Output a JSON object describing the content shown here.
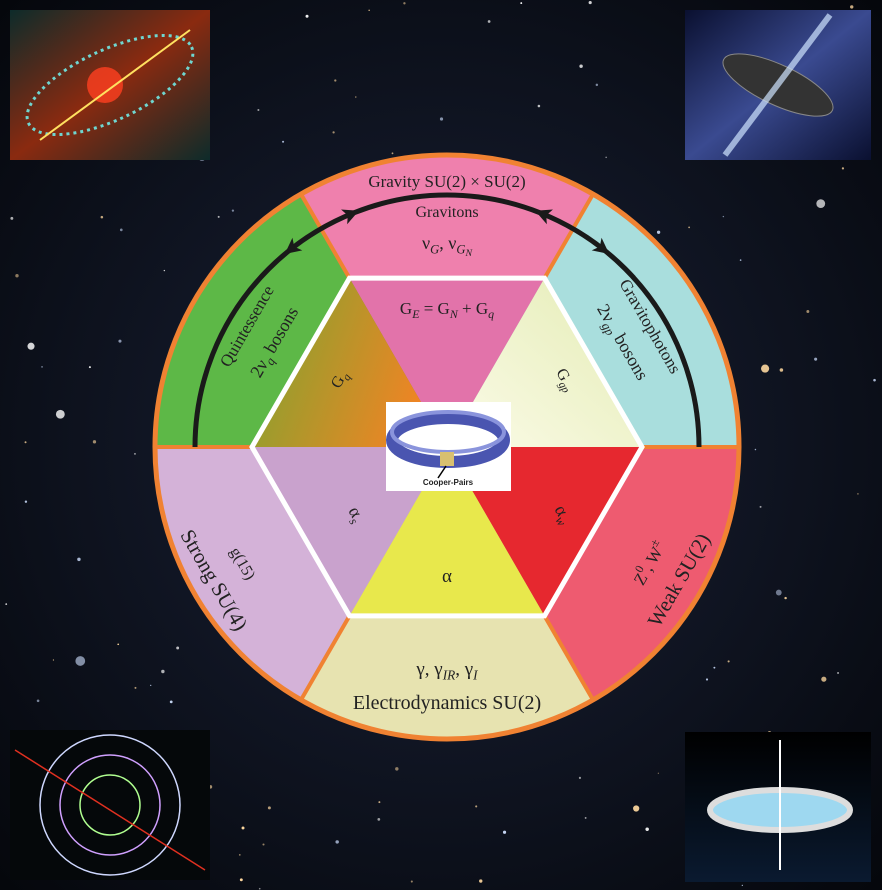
{
  "outer_sectors": {
    "top": [
      [
        {
          "t": "Gravity SU(2) × SU(2)"
        }
      ],
      [
        {
          "t": "Gravitons"
        }
      ],
      [
        {
          "t": "ν"
        },
        {
          "s": "G"
        },
        {
          "t": ", ν"
        },
        {
          "s": "G"
        },
        {
          "s2": "N"
        }
      ]
    ],
    "upper_left": [
      [
        {
          "t": "Quintessence"
        }
      ],
      [
        {
          "t": "2ν"
        },
        {
          "s": "q"
        },
        {
          "t": " bosons"
        }
      ]
    ],
    "upper_right": [
      [
        {
          "t": "Gravitophotons"
        }
      ],
      [
        {
          "t": "2ν"
        },
        {
          "s": "gp"
        },
        {
          "t": " bosons"
        }
      ]
    ],
    "lower_left": [
      [
        {
          "t": "g(15)"
        }
      ],
      [
        {
          "t": "Strong SU(4)"
        }
      ]
    ],
    "lower_right": [
      [
        {
          "t": "Z"
        },
        {
          "u": "0"
        },
        {
          "t": ", W"
        },
        {
          "u": "±"
        }
      ],
      [
        {
          "t": "Weak SU(2)"
        }
      ]
    ],
    "bottom": [
      [
        {
          "t": "γ, γ"
        },
        {
          "s": "IR"
        },
        {
          "t": ", γ"
        },
        {
          "s": "I"
        }
      ],
      [
        {
          "t": "Electrodynamics SU(2)"
        }
      ]
    ]
  },
  "inner_triangles": {
    "top": [
      {
        "t": "G"
      },
      {
        "s": "E"
      },
      {
        "t": " = G"
      },
      {
        "s": "N"
      },
      {
        "t": " + G"
      },
      {
        "s": "q"
      }
    ],
    "upper_left": [
      {
        "t": "G"
      },
      {
        "s": "q"
      }
    ],
    "upper_right": [
      {
        "t": "G"
      },
      {
        "s": "gp"
      }
    ],
    "lower_left": [
      {
        "t": "α"
      },
      {
        "s": "s"
      }
    ],
    "lower_right": [
      {
        "t": "α"
      },
      {
        "s": "w"
      }
    ],
    "bottom": [
      {
        "t": "α"
      }
    ]
  },
  "center_image_caption": "Cooper-Pairs"
}
